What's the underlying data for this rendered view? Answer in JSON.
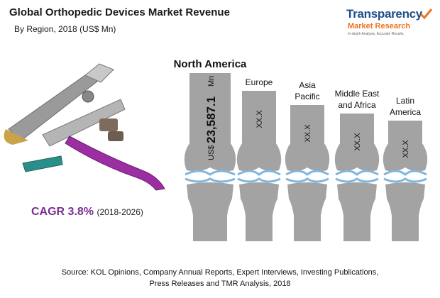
{
  "title": "Global Orthopedic Devices Market Revenue",
  "subtitle": "By Region, 2018 (US$ Mn)",
  "logo": {
    "name_line1": "Transparency",
    "name_line2": "Market Research",
    "tagline": "In-depth Analysis. Accurate Results."
  },
  "cagr": {
    "label": "CAGR 3.8%",
    "period": "(2018-2026)"
  },
  "source": {
    "line1": "Source: KOL Opinions, Company Annual Reports, Expert Interviews, Investing Publications,",
    "line2": "Press Releases and TMR Analysis, 2018"
  },
  "colors": {
    "bone": "#a3a3a3",
    "joint": "#7fb6e0",
    "cagr": "#7b2d8e",
    "logo_blue": "#1f4e8c",
    "logo_orange": "#e8741e"
  },
  "chart_data": {
    "type": "bar",
    "title": "Global Orthopedic Devices Market Revenue",
    "subtitle": "By Region, 2018 (US$ Mn)",
    "categories": [
      "North America",
      "Europe",
      "Asia Pacific",
      "Middle East and Africa",
      "Latin America"
    ],
    "category_labels": [
      [
        "North America"
      ],
      [
        "Europe"
      ],
      [
        "Asia",
        "Pacific"
      ],
      [
        "Middle East",
        "and Africa"
      ],
      [
        "Latin",
        "America"
      ]
    ],
    "values": [
      23587.1,
      null,
      null,
      null,
      null
    ],
    "value_labels": [
      "US$ 23,587.1 Mn",
      "XX.X",
      "XX.X",
      "XX.X",
      "XX.X"
    ],
    "na_value_parts": {
      "prefix": "US$",
      "number": "23,587.1",
      "unit": "Mn"
    },
    "bar_style": "bone"
  }
}
